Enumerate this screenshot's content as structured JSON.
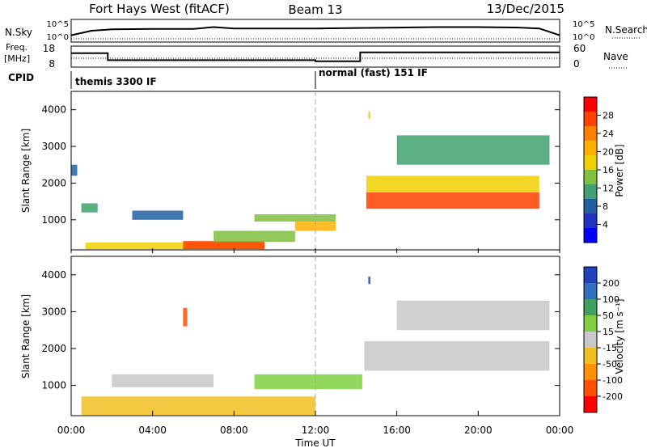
{
  "header": {
    "station": "Fort Hays West (fitACF)",
    "beam": "Beam 13",
    "date": "13/Dec/2015"
  },
  "noise_panel": {
    "left_label": "N.Sky",
    "right_label": "N.Search",
    "left_ticks": [
      "10^5",
      "10^0"
    ],
    "right_ticks": [
      "10^5",
      "10^0"
    ]
  },
  "freq_panel": {
    "left_label_line1": "Freq.",
    "left_label_line2": "[MHz]",
    "left_ticks": [
      "18",
      "8"
    ],
    "right_label": "Nave",
    "right_ticks": [
      "60",
      "0"
    ]
  },
  "cpid_panel": {
    "label": "CPID",
    "modes": [
      {
        "name": "themis 3300 IF",
        "start_hour": 0
      },
      {
        "name": "normal (fast) 151 IF",
        "start_hour": 12
      }
    ]
  },
  "power_panel": {
    "ylabel": "Slant Range [km]",
    "yticks": [
      "4000",
      "3000",
      "2000",
      "1000"
    ],
    "colorbar_label": "Power [dB]",
    "colorbar_ticks": [
      "28",
      "24",
      "20",
      "16",
      "12",
      "8",
      "4"
    ],
    "colorbar_colors": [
      "#ff0000",
      "#ff4000",
      "#ff8000",
      "#ffb000",
      "#f0d000",
      "#80c040",
      "#40a070",
      "#2060a0",
      "#2030c0",
      "#0000ff"
    ]
  },
  "velocity_panel": {
    "ylabel": "Slant Range [km]",
    "yticks": [
      "4000",
      "3000",
      "2000",
      "1000"
    ],
    "colorbar_label": "Velocity [m s⁻¹]",
    "colorbar_ticks": [
      "200",
      "100",
      "50",
      "15",
      "-15",
      "-50",
      "-100",
      "-200"
    ],
    "colorbar_colors": [
      "#2040c0",
      "#3070c0",
      "#40a060",
      "#80d040",
      "#c8c8c8",
      "#f0c020",
      "#ff9000",
      "#ff5000",
      "#ff0000"
    ]
  },
  "xaxis": {
    "label": "Time UT",
    "ticks": [
      "00:00",
      "04:00",
      "08:00",
      "12:00",
      "16:00",
      "20:00",
      "00:00"
    ]
  },
  "chart_data": [
    {
      "type": "line",
      "name": "noise",
      "x": [
        0,
        1,
        2,
        4,
        6,
        7,
        8,
        10,
        12,
        14,
        16,
        18,
        20,
        22,
        23,
        24
      ],
      "y": [
        1.5,
        2.5,
        2.8,
        2.9,
        2.9,
        3.3,
        3.0,
        3.0,
        3.0,
        3.1,
        3.2,
        3.3,
        3.3,
        3.2,
        3.0,
        1.5
      ],
      "xlim": [
        0,
        24
      ],
      "ylim": [
        0,
        5
      ]
    },
    {
      "type": "line",
      "name": "frequency",
      "x": [
        0,
        1.8,
        1.8,
        12,
        12,
        14.2,
        14.2,
        24
      ],
      "y": [
        14.6,
        14.6,
        11.3,
        11.3,
        10.8,
        10.8,
        15.0,
        15.0
      ],
      "xlim": [
        0,
        24
      ],
      "ylim": [
        8,
        18
      ]
    },
    {
      "type": "heatmap",
      "name": "power",
      "xlim": [
        0,
        24
      ],
      "ylim": [
        180,
        4500
      ],
      "colorbar_range": [
        0,
        30
      ],
      "regions": [
        {
          "x0": 0.0,
          "x1": 0.3,
          "y0": 2200,
          "y1": 2500,
          "value": 6
        },
        {
          "x0": 0.5,
          "x1": 1.3,
          "y0": 1200,
          "y1": 1450,
          "value": 10
        },
        {
          "x0": 0.7,
          "x1": 9.5,
          "y0": 200,
          "y1": 380,
          "value": 16
        },
        {
          "x0": 5.5,
          "x1": 9.5,
          "y0": 200,
          "y1": 420,
          "value": 28
        },
        {
          "x0": 7.0,
          "x1": 11.0,
          "y0": 400,
          "y1": 700,
          "value": 12
        },
        {
          "x0": 3.0,
          "x1": 5.5,
          "y0": 1000,
          "y1": 1250,
          "value": 8
        },
        {
          "x0": 9.0,
          "x1": 13.0,
          "y0": 950,
          "y1": 1150,
          "value": 14
        },
        {
          "x0": 11.0,
          "x1": 13.0,
          "y0": 700,
          "y1": 950,
          "value": 20
        },
        {
          "x0": 14.5,
          "x1": 23.0,
          "y0": 1300,
          "y1": 1750,
          "value": 26
        },
        {
          "x0": 14.5,
          "x1": 23.0,
          "y0": 1750,
          "y1": 2200,
          "value": 18
        },
        {
          "x0": 16.0,
          "x1": 23.5,
          "y0": 2500,
          "y1": 3300,
          "value": 10
        },
        {
          "x0": 14.6,
          "x1": 14.7,
          "y0": 3750,
          "y1": 3950,
          "value": 18
        }
      ]
    },
    {
      "type": "heatmap",
      "name": "velocity",
      "xlim": [
        0,
        24
      ],
      "ylim": [
        180,
        4500
      ],
      "colorbar_range": [
        -200,
        200
      ],
      "regions": [
        {
          "x0": 0.5,
          "x1": 12.0,
          "y0": 200,
          "y1": 700,
          "value": -30
        },
        {
          "x0": 9.0,
          "x1": 14.3,
          "y0": 900,
          "y1": 1300,
          "value": 30
        },
        {
          "x0": 2.0,
          "x1": 7.0,
          "y0": 950,
          "y1": 1300,
          "value": 0
        },
        {
          "x0": 14.4,
          "x1": 23.5,
          "y0": 1400,
          "y1": 2200,
          "value": 0
        },
        {
          "x0": 16.0,
          "x1": 23.5,
          "y0": 2500,
          "y1": 3300,
          "value": 0
        },
        {
          "x0": 14.6,
          "x1": 14.7,
          "y0": 3750,
          "y1": 3950,
          "value": 200
        },
        {
          "x0": 5.5,
          "x1": 5.7,
          "y0": 2600,
          "y1": 3100,
          "value": -150
        }
      ]
    }
  ]
}
